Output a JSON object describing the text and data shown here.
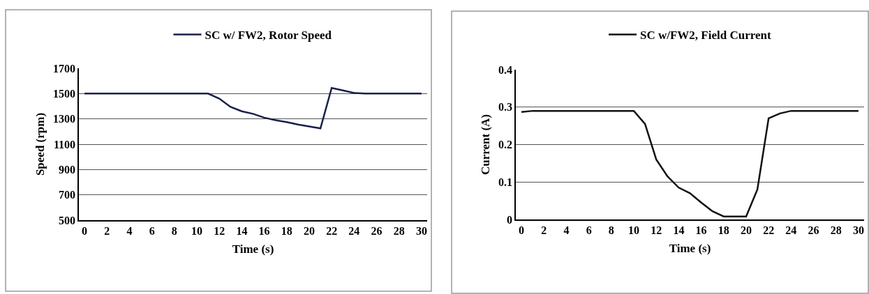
{
  "chart_data": [
    {
      "type": "line",
      "xlabel": "Time (s)",
      "ylabel": "Speed (rpm)",
      "legend": "top",
      "grid": "y",
      "marker": "none",
      "line_style": "solid",
      "x": [
        0,
        1,
        2,
        3,
        4,
        5,
        6,
        7,
        8,
        9,
        10,
        11,
        12,
        13,
        14,
        15,
        16,
        17,
        18,
        19,
        20,
        21,
        22,
        23,
        24,
        25,
        26,
        27,
        28,
        29,
        30
      ],
      "series": [
        {
          "name": "SC w/ FW2, Rotor Speed",
          "color": "#1a1f4a",
          "values": [
            1500,
            1500,
            1500,
            1500,
            1500,
            1500,
            1500,
            1500,
            1500,
            1500,
            1500,
            1500,
            1460,
            1395,
            1360,
            1340,
            1310,
            1290,
            1275,
            1255,
            1240,
            1225,
            1545,
            1525,
            1505,
            1500,
            1500,
            1500,
            1500,
            1500,
            1500
          ]
        }
      ],
      "xlim": [
        -0.5,
        30.5
      ],
      "xticks": [
        0,
        2,
        4,
        6,
        8,
        10,
        12,
        14,
        16,
        18,
        20,
        22,
        24,
        26,
        28,
        30
      ],
      "ylim": [
        500,
        1700
      ],
      "yticks": [
        500,
        700,
        900,
        1100,
        1300,
        1500,
        1700
      ]
    },
    {
      "type": "line",
      "xlabel": "Time (s)",
      "ylabel": "Current (A)",
      "legend": "top",
      "grid": "y",
      "marker": "none",
      "line_style": "solid",
      "x": [
        0,
        1,
        2,
        3,
        4,
        5,
        6,
        7,
        8,
        9,
        10,
        11,
        12,
        13,
        14,
        15,
        16,
        17,
        18,
        19,
        20,
        21,
        22,
        23,
        24,
        25,
        26,
        27,
        28,
        29,
        30
      ],
      "series": [
        {
          "name": "SC w/FW2, Field Current",
          "color": "#111111",
          "values": [
            0.287,
            0.29,
            0.29,
            0.29,
            0.29,
            0.29,
            0.29,
            0.29,
            0.29,
            0.29,
            0.29,
            0.255,
            0.16,
            0.115,
            0.085,
            0.07,
            0.045,
            0.022,
            0.008,
            0.008,
            0.008,
            0.08,
            0.27,
            0.283,
            0.29,
            0.29,
            0.29,
            0.29,
            0.29,
            0.29,
            0.29
          ]
        }
      ],
      "xlim": [
        -0.5,
        30.5
      ],
      "xticks": [
        0,
        2,
        4,
        6,
        8,
        10,
        12,
        14,
        16,
        18,
        20,
        22,
        24,
        26,
        28,
        30
      ],
      "ylim": [
        0,
        0.4
      ],
      "yticks": [
        0,
        0.1,
        0.2,
        0.3,
        0.4
      ]
    }
  ]
}
